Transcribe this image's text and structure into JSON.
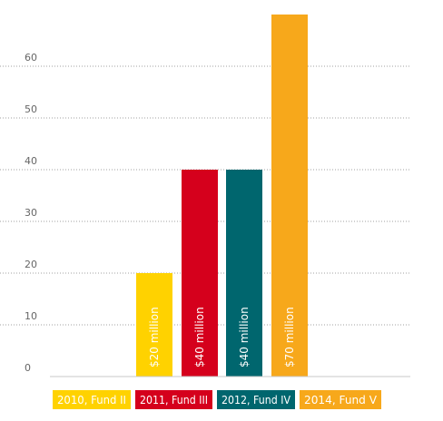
{
  "chart_data": {
    "type": "bar",
    "categories": [
      "2010, Fund II",
      "2011, Fund III",
      "2012, Fund IV",
      "2014, Fund V"
    ],
    "values": [
      20,
      40,
      40,
      70
    ],
    "bar_labels": [
      "$20 million",
      "$40 million",
      "$40 million",
      "$70 million"
    ],
    "colors": [
      "#FFD200",
      "#D5001C",
      "#00666E",
      "#F7A81B"
    ],
    "ylim": [
      0,
      70
    ],
    "yticks": [
      0,
      10,
      20,
      30,
      40,
      50,
      60
    ],
    "grid": true,
    "legend": {
      "placement": "bottom",
      "entries": [
        "2010, Fund II",
        "2011, Fund III",
        "2012, Fund IV",
        "2014, Fund V"
      ]
    }
  }
}
